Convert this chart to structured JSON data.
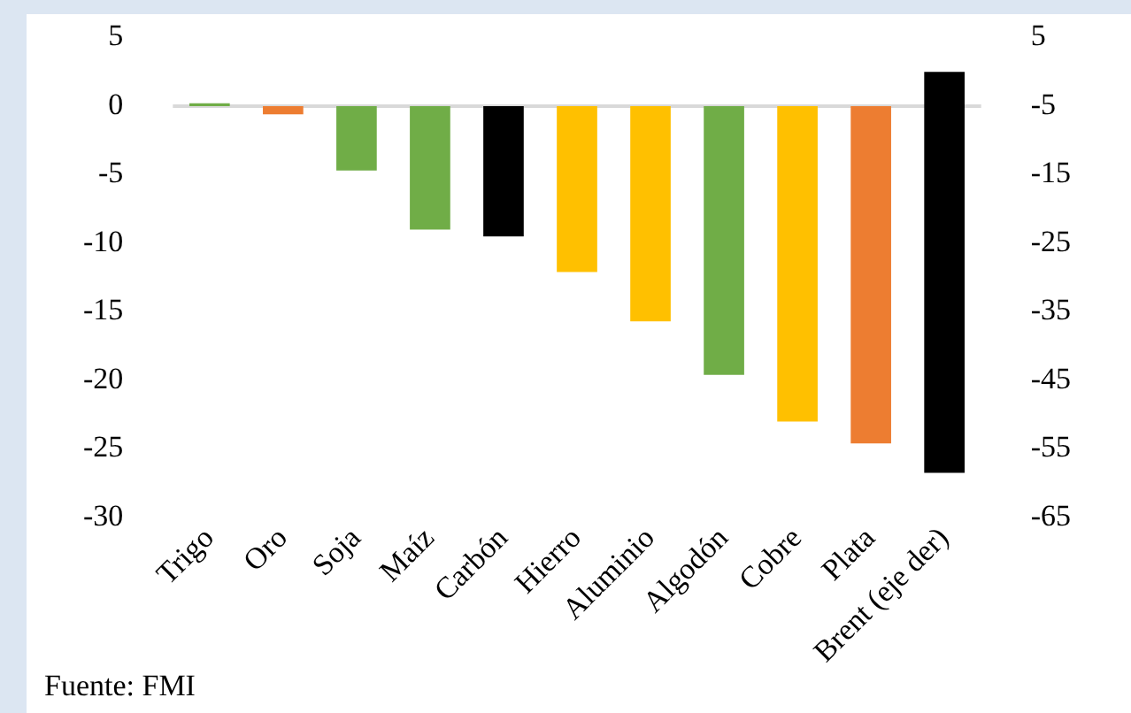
{
  "chart_data": {
    "type": "bar",
    "categories": [
      "Trigo",
      "Oro",
      "Soja",
      "Maíz",
      "Carbón",
      "Hierro",
      "Aluminio",
      "Algodón",
      "Cobre",
      "Plata",
      "Brent (eje der)"
    ],
    "series": [
      {
        "colors": [
          "#70ad47",
          "#ed7d31",
          "#70ad47",
          "#70ad47",
          "#000000",
          "#ffc000",
          "#ffc000",
          "#70ad47",
          "#ffc000",
          "#ed7d31",
          null
        ],
        "values": [
          0.2,
          -0.6,
          -4.7,
          -9.0,
          -9.5,
          -12.1,
          -15.7,
          -19.6,
          -23.0,
          -24.6,
          null
        ]
      },
      {
        "axis": "y2",
        "color": "#000000",
        "values": [
          null,
          null,
          null,
          null,
          null,
          null,
          null,
          null,
          null,
          null,
          -58.5
        ]
      }
    ],
    "ylim": [
      -30,
      5
    ],
    "yticks": [
      5,
      0,
      -5,
      -10,
      -15,
      -20,
      -25,
      -30
    ],
    "y2lim": [
      -65,
      5
    ],
    "y2ticks": [
      5,
      -5,
      -15,
      -25,
      -35,
      -45,
      -55,
      -65
    ],
    "ref_lines": [
      {
        "axis": "y",
        "value": 0,
        "color": "#d9d9d9"
      }
    ],
    "grid": false,
    "legend": false,
    "annotations": [
      "Fuente: FMI"
    ]
  }
}
